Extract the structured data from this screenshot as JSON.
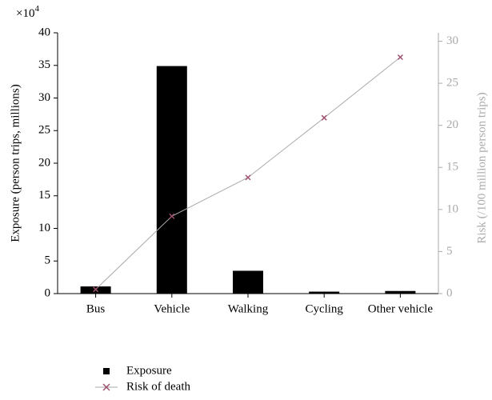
{
  "chart_data": {
    "type": "bar",
    "axis_multiplier": {
      "base": "×10",
      "exponent": "4"
    },
    "ylabel": "Exposure (person trips, millions)",
    "y2label": "Risk (/100 million person trips)",
    "categories": [
      "Bus",
      "Vehicle",
      "Walking",
      "Cycling",
      "Other vehicle"
    ],
    "series": [
      {
        "name": "Exposure",
        "type": "bar",
        "color": "#000000",
        "values": [
          1.1,
          34.9,
          3.5,
          0.3,
          0.4
        ]
      },
      {
        "name": "Risk of death",
        "type": "line",
        "axis": "y2",
        "color": "#aaaaaa",
        "marker_color": "#a05070",
        "values": [
          0.5,
          9.2,
          13.8,
          20.9,
          28.1
        ]
      }
    ],
    "ylim": [
      0,
      40
    ],
    "yticks": [
      0,
      5,
      10,
      15,
      20,
      25,
      30,
      35,
      40
    ],
    "y2lim": [
      0,
      31
    ],
    "y2ticks": [
      0,
      5,
      10,
      15,
      20,
      25,
      30
    ],
    "legend": "bottom-left",
    "grid": false
  }
}
